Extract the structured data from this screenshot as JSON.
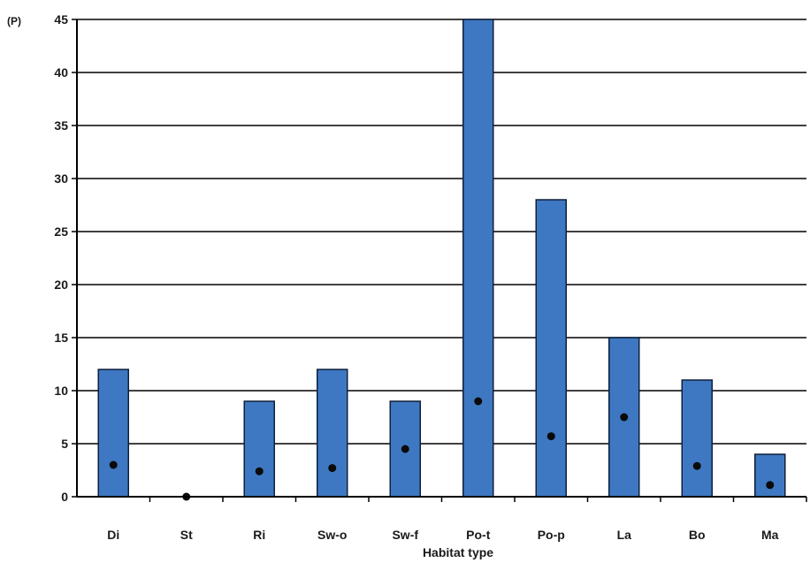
{
  "chart_data": {
    "type": "bar",
    "title": "",
    "xlabel": "Habitat type",
    "ylabel": "(P)",
    "categories": [
      "Di",
      "St",
      "Ri",
      "Sw-o",
      "Sw-f",
      "Po-t",
      "Po-p",
      "La",
      "Bo",
      "Ma"
    ],
    "series": [
      {
        "type": "bar",
        "values": [
          12,
          0,
          9,
          12,
          9,
          45,
          28,
          15,
          11,
          4
        ]
      },
      {
        "type": "scatter",
        "values": [
          3,
          0,
          2.4,
          2.7,
          4.5,
          9,
          5.7,
          7.5,
          2.9,
          1.1
        ]
      }
    ],
    "ylim": [
      0,
      45
    ],
    "yticks": [
      0,
      5,
      10,
      15,
      20,
      25,
      30,
      35,
      40,
      45
    ],
    "grid": true,
    "legend": "none",
    "colors": {
      "bar_fill": "#3e78c2",
      "bar_edge": "#0f1f3a",
      "marker": "#0a0a0a",
      "grid": "#000000"
    }
  }
}
